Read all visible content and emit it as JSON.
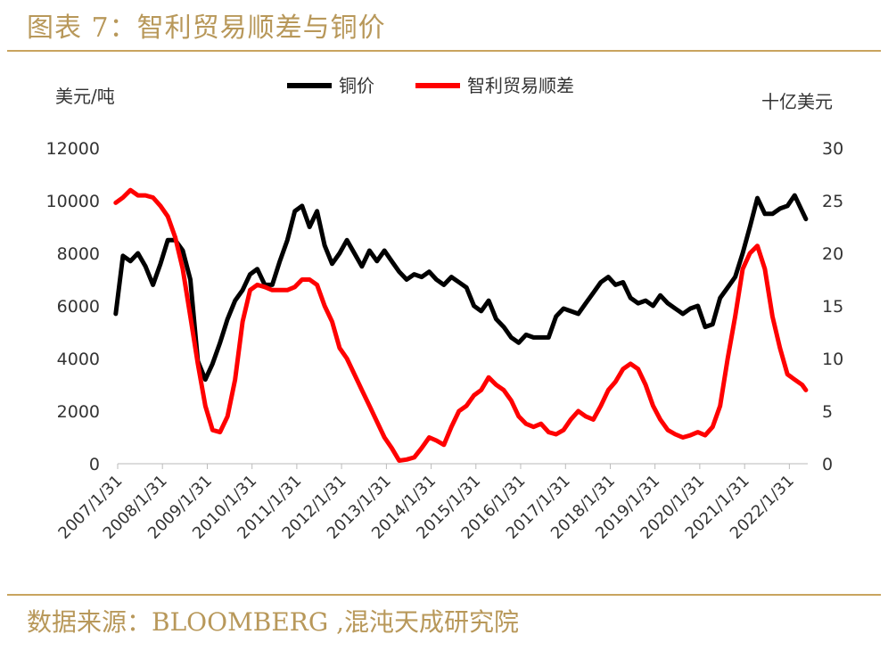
{
  "figure": {
    "title": "图表 7：智利贸易顺差与铜价",
    "source": "数据来源：BLOOMBERG ,混沌天成研究院"
  },
  "colors": {
    "copper": "#000000",
    "surplus": "#ff0000",
    "accent": "#c9a45e",
    "text": "#b8985a"
  },
  "chart_data": {
    "type": "line",
    "left_axis_unit": "美元/吨",
    "right_axis_unit": "十亿美元",
    "left_ylim": [
      0,
      12000
    ],
    "right_ylim": [
      0,
      30
    ],
    "left_ticks": [
      "0",
      "2000",
      "4000",
      "6000",
      "8000",
      "10000",
      "12000"
    ],
    "right_ticks": [
      "0",
      "5",
      "10",
      "15",
      "20",
      "25",
      "30"
    ],
    "x_range": [
      "2007-01-31",
      "2022-06-30"
    ],
    "x_ticks": [
      "2007/1/31",
      "2008/1/31",
      "2009/1/31",
      "2010/1/31",
      "2011/1/31",
      "2012/1/31",
      "2013/1/31",
      "2014/1/31",
      "2015/1/31",
      "2016/1/31",
      "2017/1/31",
      "2018/1/31",
      "2019/1/31",
      "2020/1/31",
      "2021/1/31",
      "2022/1/31"
    ],
    "legend_position": "top-center",
    "grid": false,
    "series": [
      {
        "name": "铜价",
        "axis": "left",
        "color": "#000000",
        "x": [
          "2007-01",
          "2007-03",
          "2007-05",
          "2007-07",
          "2007-09",
          "2007-11",
          "2008-01",
          "2008-03",
          "2008-05",
          "2008-07",
          "2008-09",
          "2008-11",
          "2009-01",
          "2009-03",
          "2009-05",
          "2009-07",
          "2009-09",
          "2009-11",
          "2010-01",
          "2010-03",
          "2010-05",
          "2010-07",
          "2010-09",
          "2010-11",
          "2011-01",
          "2011-03",
          "2011-05",
          "2011-07",
          "2011-09",
          "2011-11",
          "2012-01",
          "2012-03",
          "2012-05",
          "2012-07",
          "2012-09",
          "2012-11",
          "2013-01",
          "2013-03",
          "2013-05",
          "2013-07",
          "2013-09",
          "2013-11",
          "2014-01",
          "2014-03",
          "2014-05",
          "2014-07",
          "2014-09",
          "2014-11",
          "2015-01",
          "2015-03",
          "2015-05",
          "2015-07",
          "2015-09",
          "2015-11",
          "2016-01",
          "2016-03",
          "2016-05",
          "2016-07",
          "2016-09",
          "2016-11",
          "2017-01",
          "2017-03",
          "2017-05",
          "2017-07",
          "2017-09",
          "2017-11",
          "2018-01",
          "2018-03",
          "2018-05",
          "2018-07",
          "2018-09",
          "2018-11",
          "2019-01",
          "2019-03",
          "2019-05",
          "2019-07",
          "2019-09",
          "2019-11",
          "2020-01",
          "2020-03",
          "2020-05",
          "2020-07",
          "2020-09",
          "2020-11",
          "2021-01",
          "2021-03",
          "2021-05",
          "2021-07",
          "2021-09",
          "2021-11",
          "2022-01",
          "2022-03",
          "2022-05",
          "2022-06"
        ],
        "values": [
          5700,
          7900,
          7700,
          8000,
          7500,
          6800,
          7600,
          8500,
          8500,
          8100,
          7000,
          3900,
          3200,
          3800,
          4600,
          5500,
          6200,
          6600,
          7200,
          7400,
          6800,
          6800,
          7700,
          8500,
          9600,
          9800,
          9000,
          9600,
          8300,
          7600,
          8000,
          8500,
          8000,
          7500,
          8100,
          7700,
          8100,
          7700,
          7300,
          7000,
          7200,
          7100,
          7300,
          7000,
          6800,
          7100,
          6900,
          6700,
          6000,
          5800,
          6200,
          5500,
          5200,
          4800,
          4600,
          4900,
          4800,
          4800,
          4800,
          5600,
          5900,
          5800,
          5700,
          6100,
          6500,
          6900,
          7100,
          6800,
          6900,
          6300,
          6100,
          6200,
          6000,
          6400,
          6100,
          5900,
          5700,
          5900,
          6000,
          5200,
          5300,
          6300,
          6700,
          7100,
          8000,
          9000,
          10100,
          9500,
          9500,
          9700,
          9800,
          10200,
          9600,
          9300
        ]
      },
      {
        "name": "智利贸易顺差",
        "axis": "right",
        "color": "#ff0000",
        "x": [
          "2007-01",
          "2007-03",
          "2007-05",
          "2007-07",
          "2007-09",
          "2007-11",
          "2008-01",
          "2008-03",
          "2008-05",
          "2008-07",
          "2008-09",
          "2008-11",
          "2009-01",
          "2009-03",
          "2009-05",
          "2009-07",
          "2009-09",
          "2009-11",
          "2010-01",
          "2010-03",
          "2010-05",
          "2010-07",
          "2010-09",
          "2010-11",
          "2011-01",
          "2011-03",
          "2011-05",
          "2011-07",
          "2011-09",
          "2011-11",
          "2012-01",
          "2012-03",
          "2012-05",
          "2012-07",
          "2012-09",
          "2012-11",
          "2013-01",
          "2013-03",
          "2013-05",
          "2013-07",
          "2013-09",
          "2013-11",
          "2014-01",
          "2014-03",
          "2014-05",
          "2014-07",
          "2014-09",
          "2014-11",
          "2015-01",
          "2015-03",
          "2015-05",
          "2015-07",
          "2015-09",
          "2015-11",
          "2016-01",
          "2016-03",
          "2016-05",
          "2016-07",
          "2016-09",
          "2016-11",
          "2017-01",
          "2017-03",
          "2017-05",
          "2017-07",
          "2017-09",
          "2017-11",
          "2018-01",
          "2018-03",
          "2018-05",
          "2018-07",
          "2018-09",
          "2018-11",
          "2019-01",
          "2019-03",
          "2019-05",
          "2019-07",
          "2019-09",
          "2019-11",
          "2020-01",
          "2020-03",
          "2020-05",
          "2020-07",
          "2020-09",
          "2020-11",
          "2021-01",
          "2021-03",
          "2021-05",
          "2021-07",
          "2021-09",
          "2021-11",
          "2022-01",
          "2022-03",
          "2022-05",
          "2022-06"
        ],
        "values": [
          24.8,
          25.3,
          26.0,
          25.5,
          25.5,
          25.3,
          24.5,
          23.5,
          21.5,
          18.5,
          14.0,
          9.5,
          5.5,
          3.2,
          3.0,
          4.5,
          8.0,
          13.5,
          16.5,
          17.0,
          16.8,
          16.5,
          16.5,
          16.5,
          16.8,
          17.5,
          17.5,
          17.0,
          15.0,
          13.5,
          11.0,
          10.0,
          8.5,
          7.0,
          5.5,
          4.0,
          2.5,
          1.5,
          0.3,
          0.4,
          0.6,
          1.5,
          2.5,
          2.2,
          1.8,
          3.5,
          5.0,
          5.5,
          6.5,
          7.0,
          8.2,
          7.5,
          7.0,
          6.0,
          4.5,
          3.8,
          3.5,
          3.8,
          3.0,
          2.8,
          3.2,
          4.2,
          5.0,
          4.5,
          4.2,
          5.5,
          7.0,
          7.8,
          9.0,
          9.5,
          9.0,
          7.5,
          5.5,
          4.2,
          3.2,
          2.8,
          2.5,
          2.7,
          3.0,
          2.7,
          3.5,
          5.5,
          10.0,
          14.0,
          18.5,
          20.0,
          20.7,
          18.5,
          14.0,
          11.0,
          8.5,
          8.0,
          7.5,
          7.0
        ]
      }
    ]
  }
}
